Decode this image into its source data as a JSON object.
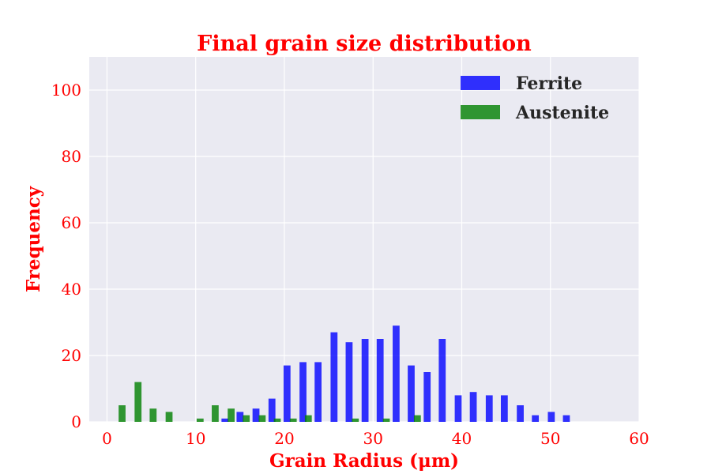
{
  "chart_data": {
    "type": "bar",
    "title": "Final grain size distribution",
    "xlabel": "Grain Radius (μm)",
    "ylabel": "Frequency",
    "xlim": [
      -2,
      60
    ],
    "ylim": [
      0,
      110
    ],
    "xticks": [
      0,
      10,
      20,
      30,
      40,
      50,
      60
    ],
    "yticks": [
      0,
      20,
      40,
      60,
      80,
      100
    ],
    "grid": true,
    "legend_position": "top-right",
    "background": "#eaeaf2",
    "series": [
      {
        "name": "Ferrite",
        "color": "#0000ff",
        "points": [
          {
            "x": 13.3,
            "y": 1
          },
          {
            "x": 15.0,
            "y": 3
          },
          {
            "x": 16.8,
            "y": 4
          },
          {
            "x": 18.6,
            "y": 7
          },
          {
            "x": 20.3,
            "y": 17
          },
          {
            "x": 22.1,
            "y": 18
          },
          {
            "x": 23.8,
            "y": 18
          },
          {
            "x": 25.6,
            "y": 27
          },
          {
            "x": 27.3,
            "y": 24
          },
          {
            "x": 29.1,
            "y": 25
          },
          {
            "x": 30.8,
            "y": 25
          },
          {
            "x": 32.6,
            "y": 29
          },
          {
            "x": 34.3,
            "y": 17
          },
          {
            "x": 36.1,
            "y": 15
          },
          {
            "x": 37.8,
            "y": 25
          },
          {
            "x": 39.6,
            "y": 8
          },
          {
            "x": 41.3,
            "y": 9
          },
          {
            "x": 43.1,
            "y": 8
          },
          {
            "x": 44.8,
            "y": 8
          },
          {
            "x": 46.6,
            "y": 5
          },
          {
            "x": 48.3,
            "y": 2
          },
          {
            "x": 50.1,
            "y": 3
          },
          {
            "x": 51.8,
            "y": 2
          }
        ]
      },
      {
        "name": "Austenite",
        "color": "#008000",
        "points": [
          {
            "x": 1.7,
            "y": 5
          },
          {
            "x": 3.5,
            "y": 12
          },
          {
            "x": 5.2,
            "y": 4
          },
          {
            "x": 7.0,
            "y": 3
          },
          {
            "x": 10.5,
            "y": 1
          },
          {
            "x": 12.2,
            "y": 5
          },
          {
            "x": 14.0,
            "y": 4
          },
          {
            "x": 15.7,
            "y": 2
          },
          {
            "x": 17.5,
            "y": 2
          },
          {
            "x": 19.2,
            "y": 1
          },
          {
            "x": 21.0,
            "y": 1
          },
          {
            "x": 22.7,
            "y": 2
          },
          {
            "x": 28.0,
            "y": 1
          },
          {
            "x": 31.5,
            "y": 1
          },
          {
            "x": 35.0,
            "y": 2
          }
        ]
      }
    ]
  }
}
